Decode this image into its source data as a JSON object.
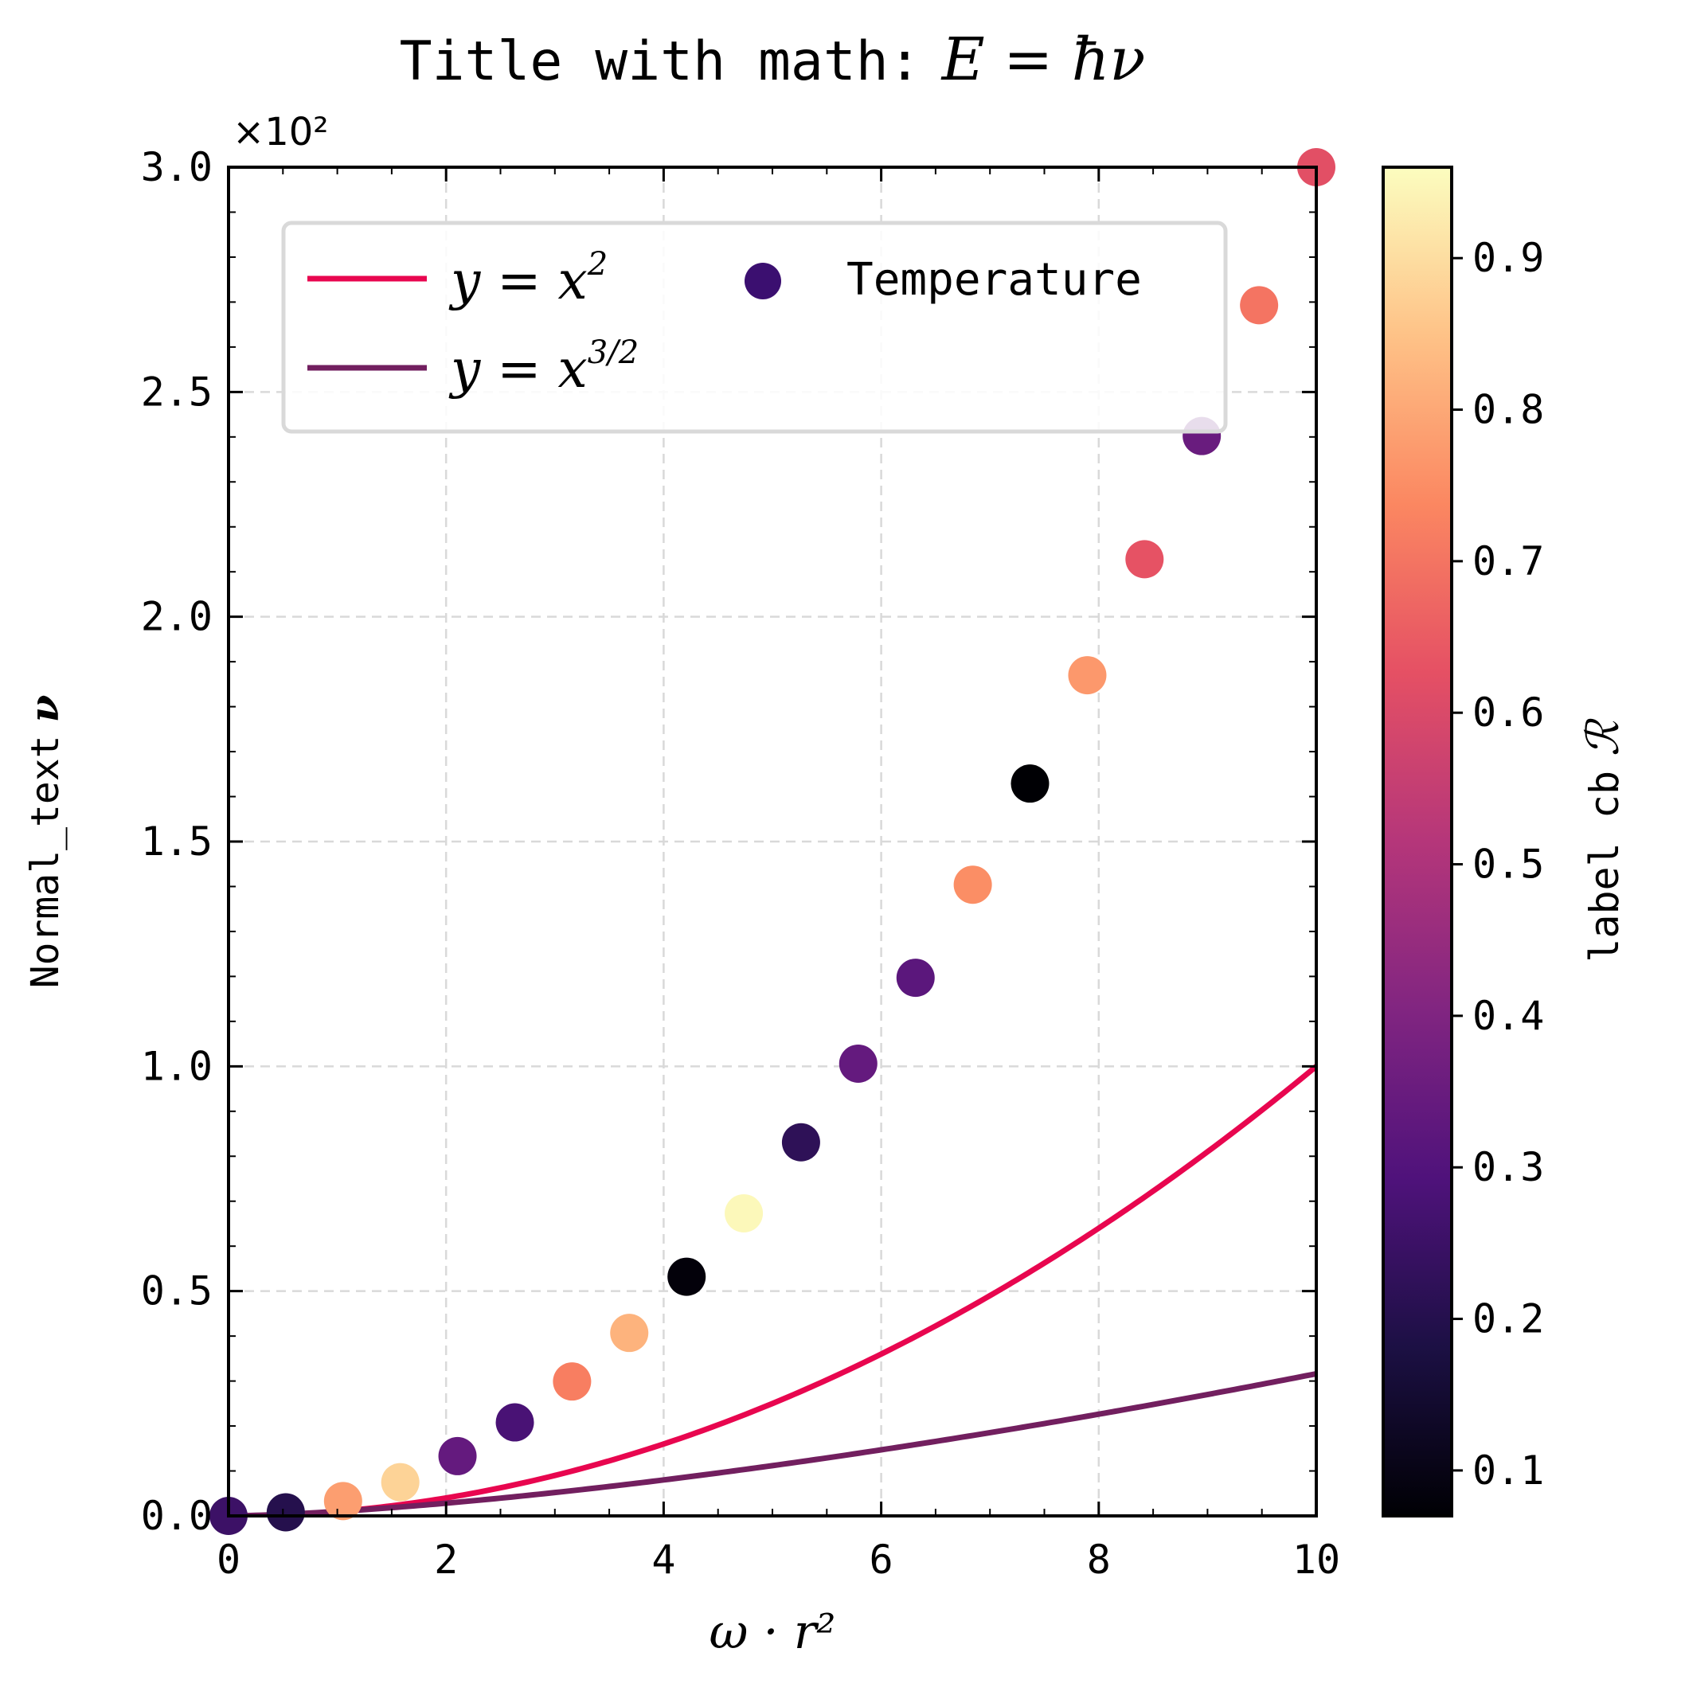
{
  "chart_data": {
    "type": "scatter",
    "title_text": "Title with math:",
    "title_math": "E = ħν",
    "xlabel": "ω · r²",
    "ylabel_text": "Normal_text",
    "ylabel_math": "ν",
    "y_multiplier": "×10²",
    "colorbar_label_text": "label cb",
    "colorbar_label_math": "ℛ",
    "colorbar_ticks": [
      "0.1",
      "0.2",
      "0.3",
      "0.4",
      "0.5",
      "0.6",
      "0.7",
      "0.8",
      "0.9"
    ],
    "colorbar_range": [
      0.07,
      0.96
    ],
    "xlim": [
      0,
      10
    ],
    "ylim": [
      0,
      3.0
    ],
    "x_ticks": [
      "0",
      "2",
      "4",
      "6",
      "8",
      "10"
    ],
    "y_ticks": [
      "0.0",
      "0.5",
      "1.0",
      "1.5",
      "2.0",
      "2.5",
      "3.0"
    ],
    "grid": true,
    "legend_position": "upper-left",
    "series": [
      {
        "name": "y = x²",
        "kind": "line",
        "color": "#e8064f",
        "function": "x^2"
      },
      {
        "name": "y = x^{3/2}",
        "kind": "line",
        "color": "#721f5f",
        "function": "x^1.5"
      },
      {
        "name": "Temperature",
        "kind": "scatter",
        "points": [
          {
            "x": 0.0,
            "y": 0.0,
            "c": 0.25
          },
          {
            "x": 0.526,
            "y": 0.008,
            "c": 0.2
          },
          {
            "x": 1.053,
            "y": 0.033,
            "c": 0.78
          },
          {
            "x": 1.579,
            "y": 0.075,
            "c": 0.88
          },
          {
            "x": 2.105,
            "y": 0.133,
            "c": 0.34
          },
          {
            "x": 2.632,
            "y": 0.208,
            "c": 0.28
          },
          {
            "x": 3.158,
            "y": 0.299,
            "c": 0.72
          },
          {
            "x": 3.684,
            "y": 0.407,
            "c": 0.82
          },
          {
            "x": 4.211,
            "y": 0.532,
            "c": 0.08
          },
          {
            "x": 4.737,
            "y": 0.673,
            "c": 0.95
          },
          {
            "x": 5.263,
            "y": 0.831,
            "c": 0.22
          },
          {
            "x": 5.789,
            "y": 1.006,
            "c": 0.34
          },
          {
            "x": 6.316,
            "y": 1.197,
            "c": 0.32
          },
          {
            "x": 6.842,
            "y": 1.404,
            "c": 0.75
          },
          {
            "x": 7.368,
            "y": 1.629,
            "c": 0.07
          },
          {
            "x": 7.895,
            "y": 1.87,
            "c": 0.77
          },
          {
            "x": 8.421,
            "y": 2.128,
            "c": 0.63
          },
          {
            "x": 8.947,
            "y": 2.402,
            "c": 0.35
          },
          {
            "x": 9.474,
            "y": 2.693,
            "c": 0.7
          },
          {
            "x": 10.0,
            "y": 3.0,
            "c": 0.62
          }
        ]
      }
    ]
  }
}
